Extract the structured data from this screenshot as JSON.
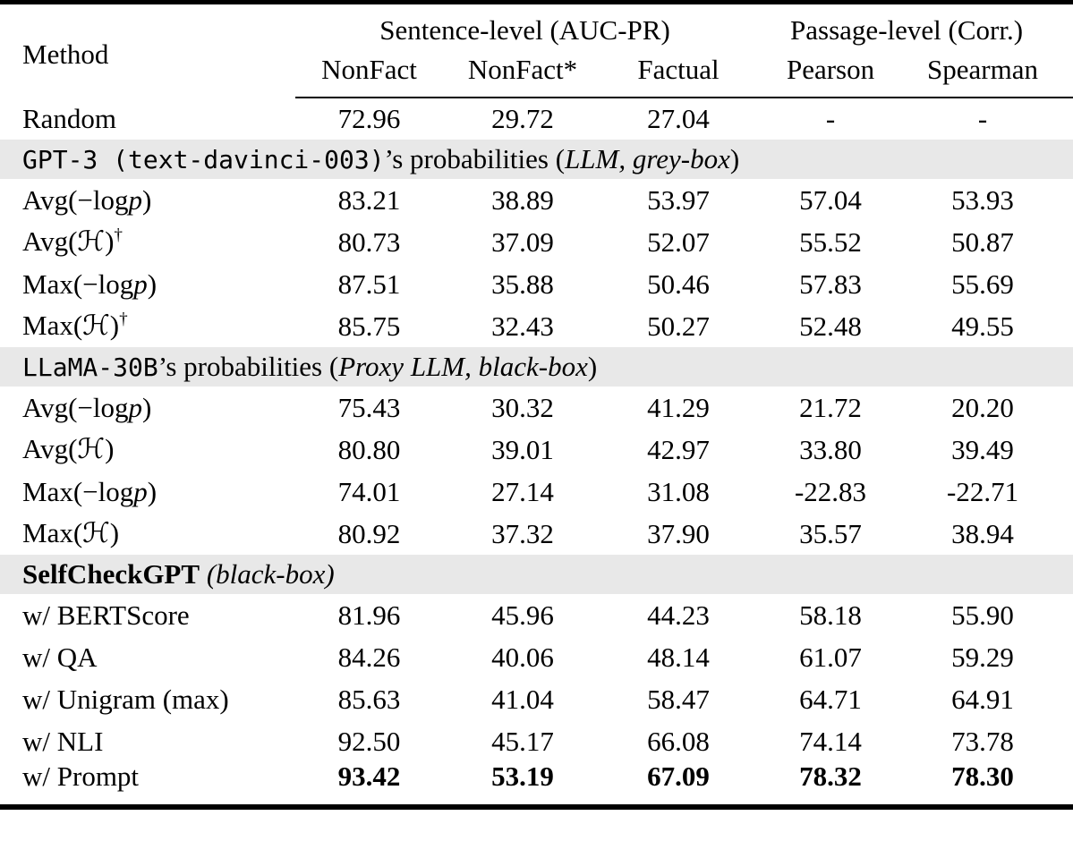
{
  "header": {
    "method_label": "Method",
    "groups": [
      {
        "label": "Sentence-level (AUC-PR)",
        "span": 3
      },
      {
        "label": "Passage-level (Corr.)",
        "span": 2
      }
    ],
    "columns": [
      "NonFact",
      "NonFact*",
      "Factual",
      "Pearson",
      "Spearman"
    ]
  },
  "rows": [
    {
      "type": "data",
      "method": {
        "pre": "Random"
      },
      "values": [
        "72.96",
        "29.72",
        "27.04",
        "-",
        "-"
      ]
    },
    {
      "type": "section",
      "mono": "GPT-3 (text-davinci-003)",
      "pre": "’s probabilities (",
      "italic": "LLM, grey-box",
      "post": ")"
    },
    {
      "type": "data",
      "method": {
        "pre": "Avg(−log",
        "it": "p",
        "post": ")"
      },
      "values": [
        "83.21",
        "38.89",
        "53.97",
        "57.04",
        "53.93"
      ]
    },
    {
      "type": "data",
      "method": {
        "pre": "Avg(",
        "cal": "ℋ",
        "post": ")",
        "sup": "†"
      },
      "values": [
        "80.73",
        "37.09",
        "52.07",
        "55.52",
        "50.87"
      ]
    },
    {
      "type": "data",
      "method": {
        "pre": "Max(−log",
        "it": "p",
        "post": ")"
      },
      "values": [
        "87.51",
        "35.88",
        "50.46",
        "57.83",
        "55.69"
      ]
    },
    {
      "type": "data",
      "method": {
        "pre": "Max(",
        "cal": "ℋ",
        "post": ")",
        "sup": "†"
      },
      "values": [
        "85.75",
        "32.43",
        "50.27",
        "52.48",
        "49.55"
      ]
    },
    {
      "type": "section",
      "mono": "LLaMA-30B",
      "pre": "’s probabilities (",
      "italic": "Proxy LLM, black-box",
      "post": ")"
    },
    {
      "type": "data",
      "method": {
        "pre": "Avg(−log",
        "it": "p",
        "post": ")"
      },
      "values": [
        "75.43",
        "30.32",
        "41.29",
        "21.72",
        "20.20"
      ]
    },
    {
      "type": "data",
      "method": {
        "pre": "Avg(",
        "cal": "ℋ",
        "post": ")"
      },
      "values": [
        "80.80",
        "39.01",
        "42.97",
        "33.80",
        "39.49"
      ]
    },
    {
      "type": "data",
      "method": {
        "pre": "Max(−log",
        "it": "p",
        "post": ")"
      },
      "values": [
        "74.01",
        "27.14",
        "31.08",
        "-22.83",
        "-22.71"
      ]
    },
    {
      "type": "data",
      "method": {
        "pre": "Max(",
        "cal": "ℋ",
        "post": ")"
      },
      "values": [
        "80.92",
        "37.32",
        "37.90",
        "35.57",
        "38.94"
      ]
    },
    {
      "type": "section",
      "bold": "SelfCheckGPT",
      "italic": " (black-box)"
    },
    {
      "type": "data",
      "method": {
        "pre": "w/ BERTScore"
      },
      "values": [
        "81.96",
        "45.96",
        "44.23",
        "58.18",
        "55.90"
      ]
    },
    {
      "type": "data",
      "method": {
        "pre": "w/ QA"
      },
      "values": [
        "84.26",
        "40.06",
        "48.14",
        "61.07",
        "59.29"
      ]
    },
    {
      "type": "data",
      "method": {
        "pre": "w/ Unigram (max)"
      },
      "values": [
        "85.63",
        "41.04",
        "58.47",
        "64.71",
        "64.91"
      ]
    },
    {
      "type": "data",
      "method": {
        "pre": "w/ NLI"
      },
      "values": [
        "92.50",
        "45.17",
        "66.08",
        "74.14",
        "73.78"
      ]
    },
    {
      "type": "data",
      "method": {
        "pre": "w/ Prompt"
      },
      "values": [
        "93.42",
        "53.19",
        "67.09",
        "78.32",
        "78.30"
      ],
      "bold_values": true
    }
  ],
  "colors": {
    "section_bg": "#e8e8e8",
    "text": "#000000",
    "rule": "#000000"
  }
}
